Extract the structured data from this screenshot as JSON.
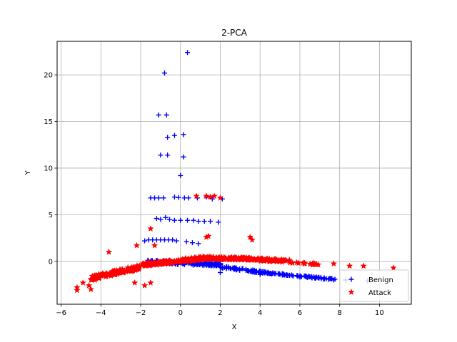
{
  "chart_data": {
    "type": "scatter",
    "title": "2-PCA",
    "xlabel": "X",
    "ylabel": "Y",
    "xlim": [
      -6.2,
      11.6
    ],
    "ylim": [
      -4.6,
      23.6
    ],
    "xticks": [
      -6,
      -4,
      -2,
      0,
      2,
      4,
      6,
      8,
      10
    ],
    "yticks": [
      0,
      5,
      10,
      15,
      20
    ],
    "grid": true,
    "legend": {
      "placement": "lower-right",
      "entries": [
        "Benign",
        "Attack"
      ]
    },
    "series": [
      {
        "name": "Benign",
        "marker": "plus",
        "color": "#0000ff",
        "points": [
          [
            0.35,
            22.4
          ],
          [
            -0.8,
            20.2
          ],
          [
            -1.1,
            15.7
          ],
          [
            -0.7,
            15.7
          ],
          [
            -0.3,
            13.5
          ],
          [
            -0.65,
            13.3
          ],
          [
            0.15,
            13.6
          ],
          [
            -1.0,
            11.4
          ],
          [
            -0.65,
            11.4
          ],
          [
            0.15,
            11.2
          ],
          [
            0.0,
            9.2
          ],
          [
            -1.5,
            6.8
          ],
          [
            -1.3,
            6.8
          ],
          [
            -1.1,
            6.8
          ],
          [
            -0.85,
            6.8
          ],
          [
            -0.3,
            6.9
          ],
          [
            -0.1,
            6.85
          ],
          [
            0.2,
            6.8
          ],
          [
            0.4,
            6.8
          ],
          [
            0.85,
            6.8
          ],
          [
            1.3,
            6.9
          ],
          [
            1.6,
            6.7
          ],
          [
            2.1,
            6.7
          ],
          [
            -1.2,
            4.6
          ],
          [
            -1.0,
            4.5
          ],
          [
            -0.75,
            4.7
          ],
          [
            -0.55,
            4.5
          ],
          [
            -0.3,
            4.4
          ],
          [
            0.0,
            4.4
          ],
          [
            0.35,
            4.4
          ],
          [
            0.65,
            4.4
          ],
          [
            0.9,
            4.3
          ],
          [
            1.2,
            4.3
          ],
          [
            1.5,
            4.3
          ],
          [
            1.9,
            4.2
          ],
          [
            -1.8,
            2.2
          ],
          [
            -1.6,
            2.3
          ],
          [
            -1.4,
            2.3
          ],
          [
            -1.2,
            2.3
          ],
          [
            -1.0,
            2.3
          ],
          [
            -0.8,
            2.3
          ],
          [
            -0.6,
            2.3
          ],
          [
            -0.4,
            2.3
          ],
          [
            -0.2,
            2.2
          ],
          [
            0.3,
            2.1
          ],
          [
            0.6,
            2.0
          ],
          [
            0.9,
            1.9
          ],
          [
            2.0,
            -1.2
          ],
          [
            4.0,
            -1.4
          ],
          [
            6.0,
            -1.7
          ],
          [
            7.7,
            -2.0
          ],
          [
            8.3,
            -2.0
          ],
          [
            9.4,
            -2.1
          ]
        ],
        "bands": [
          {
            "x_from": -1.6,
            "x_to": 2.0,
            "y_from": -0.05,
            "y_to": -0.35,
            "count": 160,
            "jitter": 0.35
          },
          {
            "x_from": 2.0,
            "x_to": 4.2,
            "y_from": -0.6,
            "y_to": -1.2,
            "count": 70,
            "jitter": 0.25
          },
          {
            "x_from": 4.2,
            "x_to": 7.8,
            "y_from": -1.2,
            "y_to": -1.95,
            "count": 80,
            "jitter": 0.15
          }
        ]
      },
      {
        "name": "Attack",
        "marker": "star",
        "color": "#ff0000",
        "points": [
          [
            -5.2,
            -2.8
          ],
          [
            -5.2,
            -3.1
          ],
          [
            -4.9,
            -2.3
          ],
          [
            -4.6,
            -2.6
          ],
          [
            -4.5,
            -3.0
          ],
          [
            -4.3,
            -2.0
          ],
          [
            -3.6,
            1.0
          ],
          [
            -2.2,
            1.7
          ],
          [
            -1.5,
            3.5
          ],
          [
            -1.3,
            1.7
          ],
          [
            0.8,
            7.0
          ],
          [
            1.3,
            7.0
          ],
          [
            1.5,
            6.9
          ],
          [
            1.7,
            7.0
          ],
          [
            2.0,
            6.8
          ],
          [
            1.3,
            2.6
          ],
          [
            1.4,
            2.7
          ],
          [
            3.5,
            2.6
          ],
          [
            3.6,
            2.3
          ],
          [
            7.7,
            -0.25
          ],
          [
            8.5,
            -0.5
          ],
          [
            9.2,
            -0.5
          ],
          [
            10.7,
            -0.7
          ],
          [
            -2.3,
            -2.3
          ],
          [
            -1.8,
            -2.6
          ],
          [
            -1.5,
            -2.3
          ]
        ],
        "bands": [
          {
            "x_from": -4.5,
            "x_to": -2.0,
            "y_from": -1.8,
            "y_to": -0.6,
            "count": 120,
            "jitter": 0.45
          },
          {
            "x_from": -2.0,
            "x_to": 1.2,
            "y_from": -0.4,
            "y_to": 0.35,
            "count": 150,
            "jitter": 0.35
          },
          {
            "x_from": 1.2,
            "x_to": 3.8,
            "y_from": 0.35,
            "y_to": 0.25,
            "count": 110,
            "jitter": 0.3
          },
          {
            "x_from": 3.8,
            "x_to": 5.5,
            "y_from": 0.2,
            "y_to": 0.0,
            "count": 50,
            "jitter": 0.3
          },
          {
            "x_from": 5.5,
            "x_to": 7.0,
            "y_from": -0.1,
            "y_to": -0.3,
            "count": 15,
            "jitter": 0.2
          }
        ]
      }
    ]
  }
}
